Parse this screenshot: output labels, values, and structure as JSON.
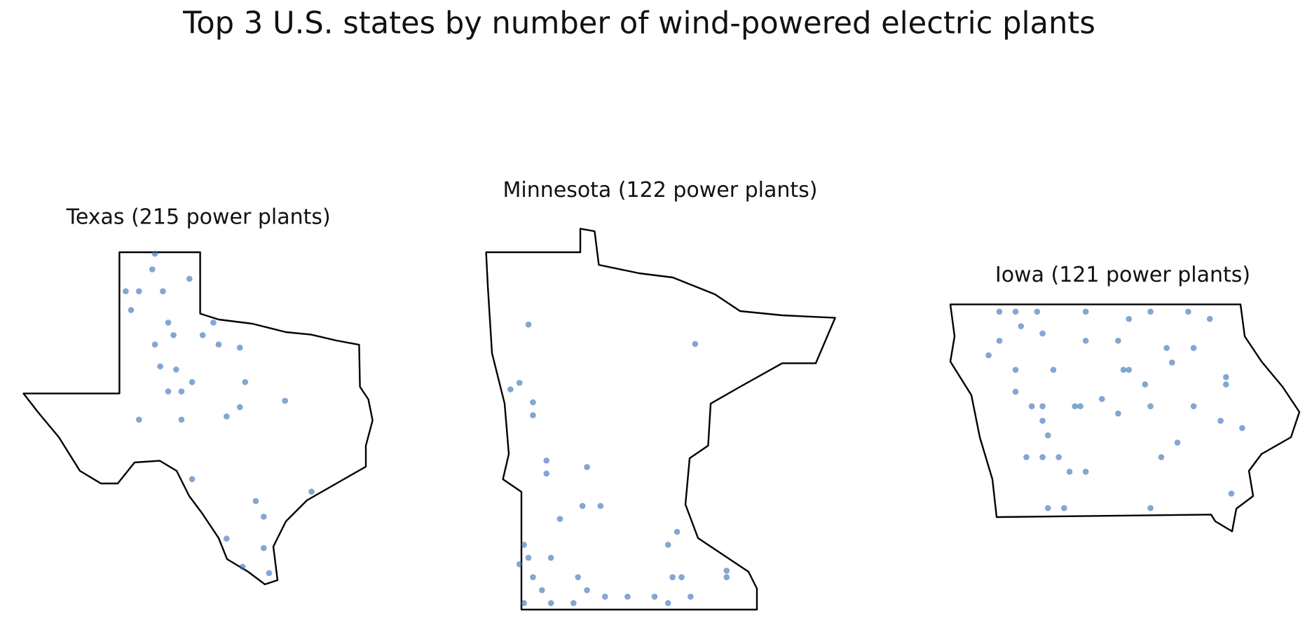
{
  "title": "Top 3 U.S. states by number of wind-powered electric plants",
  "color": "#2e6db4",
  "maps": [
    {
      "title": "Texas (215 power plants)",
      "xlim": [
        -106.65,
        -93.5
      ],
      "ylim": [
        25.84,
        36.5
      ],
      "x": [
        -101.7,
        -101.8,
        -102.3,
        -101.4,
        -102.6,
        -101.2,
        -101.0,
        -101.7,
        -101.5,
        -100.9,
        -100.3,
        -101.2,
        -100.7,
        -99.9,
        -99.5,
        -99.3,
        -98.5,
        -98.3,
        -98.5,
        -96.8,
        -102.3,
        -100.7,
        -99.0,
        -97.9,
        -97.6,
        -97.6,
        -99.0,
        -98.4,
        -100.3,
        -95.8,
        -97.4,
        -102.8,
        -100.4
      ],
      "y": [
        36.4,
        35.9,
        35.2,
        35.2,
        34.6,
        34.2,
        33.8,
        33.5,
        32.8,
        32.7,
        32.3,
        32.0,
        32.0,
        33.8,
        34.2,
        33.5,
        33.4,
        32.3,
        31.5,
        31.7,
        31.1,
        31.1,
        31.2,
        28.5,
        28.0,
        27.0,
        27.3,
        26.4,
        29.2,
        28.8,
        26.2,
        35.2,
        35.6
      ]
    },
    {
      "title": "Minnesota (122 power plants)",
      "xlim": [
        -97.24,
        -89.49
      ],
      "ylim": [
        43.5,
        49.38
      ],
      "x": [
        -96.3,
        -92.6,
        -96.5,
        -96.2,
        -96.2,
        -96.7,
        -95.9,
        -95.9,
        -95.0,
        -95.1,
        -94.7,
        -95.6,
        -93.0,
        -93.2,
        -96.4,
        -96.3,
        -95.8,
        -96.5,
        -96.2,
        -96.0,
        -96.4,
        -95.8,
        -95.3,
        -95.0,
        -94.6,
        -94.1,
        -93.5,
        -93.1,
        -92.9,
        -92.7,
        -91.9,
        -91.9,
        -95.2,
        -93.2
      ],
      "y": [
        47.9,
        47.6,
        47.0,
        46.7,
        46.5,
        46.9,
        45.8,
        45.6,
        45.7,
        45.1,
        45.1,
        44.9,
        44.7,
        44.5,
        44.5,
        44.3,
        44.3,
        44.2,
        44.0,
        43.8,
        43.6,
        43.6,
        43.6,
        43.8,
        43.7,
        43.7,
        43.7,
        44.0,
        44.0,
        43.7,
        44.1,
        44.0,
        44.0,
        43.6
      ]
    },
    {
      "title": "Iowa (121 power plants)",
      "xlim": [
        -96.64,
        -90.14
      ],
      "ylim": [
        40.38,
        43.5
      ],
      "x": [
        -95.7,
        -95.4,
        -95.0,
        -94.1,
        -93.3,
        -92.9,
        -92.2,
        -91.8,
        -95.3,
        -95.7,
        -94.9,
        -94.1,
        -93.5,
        -92.6,
        -92.1,
        -95.9,
        -95.4,
        -94.7,
        -93.4,
        -93.3,
        -92.5,
        -91.5,
        -91.5,
        -95.4,
        -95.1,
        -94.9,
        -94.3,
        -94.2,
        -93.8,
        -93.5,
        -93.0,
        -92.9,
        -92.1,
        -91.6,
        -91.2,
        -94.9,
        -94.8,
        -94.9,
        -94.6,
        -94.4,
        -94.1,
        -95.2,
        -94.5,
        -94.8,
        -92.9,
        -91.4,
        -92.7,
        -92.4
      ],
      "y": [
        43.4,
        43.4,
        43.4,
        43.4,
        43.3,
        43.4,
        43.4,
        43.3,
        43.2,
        43.0,
        43.1,
        43.0,
        43.0,
        42.9,
        42.9,
        42.8,
        42.6,
        42.6,
        42.6,
        42.6,
        42.7,
        42.5,
        42.4,
        42.3,
        42.1,
        42.1,
        42.1,
        42.1,
        42.2,
        42.0,
        42.4,
        42.1,
        42.1,
        41.9,
        41.8,
        41.9,
        41.7,
        41.4,
        41.4,
        41.2,
        41.2,
        41.4,
        40.7,
        40.7,
        40.7,
        40.9,
        41.4,
        41.6
      ]
    }
  ]
}
